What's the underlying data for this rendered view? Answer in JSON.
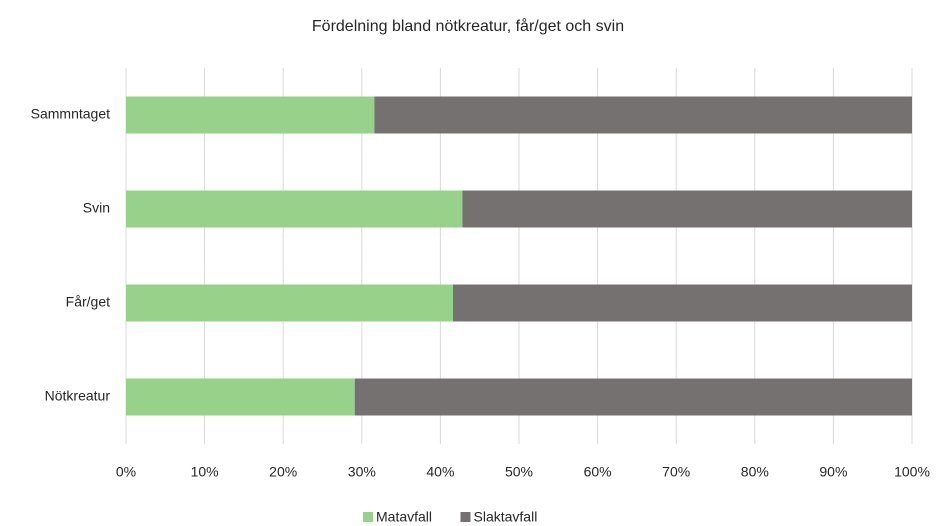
{
  "chart_data": {
    "type": "stacked_barh",
    "title": "Fördelning bland nötkreatur, får/get och svin",
    "categories": [
      "Sammntaget",
      "Svin",
      "Får/get",
      "Nötkreatur"
    ],
    "series": [
      {
        "name": "Matavfall",
        "color": "#97d18a",
        "values": [
          31.6,
          42.8,
          41.6,
          29.1
        ]
      },
      {
        "name": "Slaktavfall",
        "color": "#767171",
        "values": [
          68.4,
          57.2,
          58.4,
          70.9
        ]
      }
    ],
    "xlim": [
      0,
      100
    ],
    "xticks": [
      {
        "value": 0,
        "label": "0%"
      },
      {
        "value": 10,
        "label": "10%"
      },
      {
        "value": 20,
        "label": "20%"
      },
      {
        "value": 30,
        "label": "30%"
      },
      {
        "value": 40,
        "label": "40%"
      },
      {
        "value": 50,
        "label": "50%"
      },
      {
        "value": 60,
        "label": "60%"
      },
      {
        "value": 70,
        "label": "70%"
      },
      {
        "value": 80,
        "label": "80%"
      },
      {
        "value": 90,
        "label": "90%"
      },
      {
        "value": 100,
        "label": "100%"
      }
    ],
    "grid": true,
    "legend": "bottom"
  }
}
